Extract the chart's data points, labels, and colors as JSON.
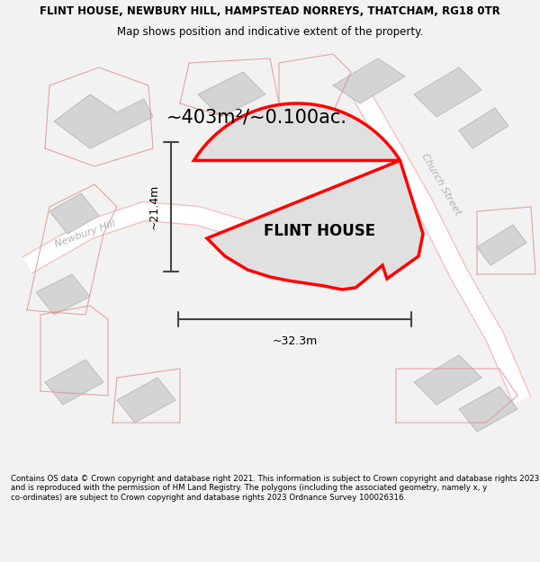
{
  "title_line1": "FLINT HOUSE, NEWBURY HILL, HAMPSTEAD NORREYS, THATCHAM, RG18 0TR",
  "title_line2": "Map shows position and indicative extent of the property.",
  "property_label": "FLINT HOUSE",
  "area_label": "~403m²/~0.100ac.",
  "dim_width": "~32.3m",
  "dim_height": "~21.4m",
  "street_label1": "Church Street",
  "street_label2": "Newbury Hill",
  "footer_text": "Contains OS data © Crown copyright and database right 2021. This information is subject to Crown copyright and database rights 2023 and is reproduced with the permission of HM Land Registry. The polygons (including the associated geometry, namely x, y co-ordinates) are subject to Crown copyright and database rights 2023 Ordnance Survey 100026316.",
  "bg_color": "#f2f2f2",
  "map_bg": "#ffffff",
  "property_fill": "#e0e0e0",
  "outline_color": "#ff0000",
  "road_color": "#f5c0c0",
  "building_fill": "#d4d4d4",
  "building_outline": "#bbbbbb",
  "dim_line_color": "#444444",
  "text_color": "#000000",
  "street_text_color": "#b0b0b0",
  "title_fontsize": 8.5,
  "footer_fontsize": 6.2,
  "area_fontsize": 15,
  "label_fontsize": 12,
  "dim_fontsize": 9,
  "street_fontsize": 8
}
